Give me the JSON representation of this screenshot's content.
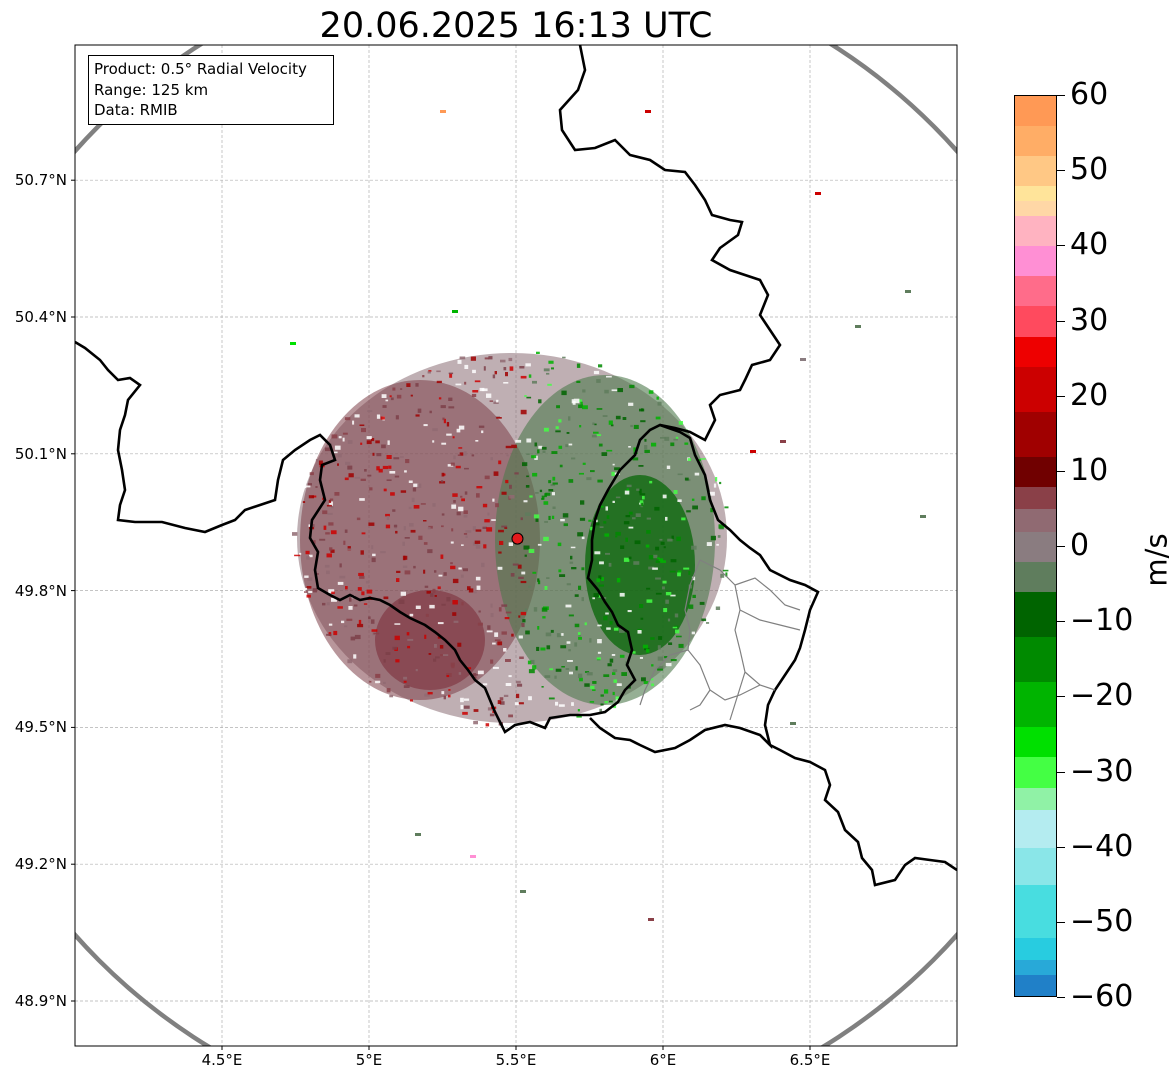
{
  "title": "20.06.2025 16:13 UTC",
  "info_box": {
    "product": "Product: 0.5° Radial Velocity",
    "range": "Range: 125 km",
    "data": "Data: RMIB"
  },
  "axes": {
    "x_ticks": [
      {
        "value": 4.5,
        "label": "4.5°E"
      },
      {
        "value": 5.0,
        "label": "5°E"
      },
      {
        "value": 5.5,
        "label": "5.5°E"
      },
      {
        "value": 6.0,
        "label": "6°E"
      },
      {
        "value": 6.5,
        "label": "6.5°E"
      }
    ],
    "y_ticks": [
      {
        "value": 50.7,
        "label": "50.7°N"
      },
      {
        "value": 50.4,
        "label": "50.4°N"
      },
      {
        "value": 50.1,
        "label": "50.1°N"
      },
      {
        "value": 49.8,
        "label": "49.8°N"
      },
      {
        "value": 49.5,
        "label": "49.5°N"
      },
      {
        "value": 49.2,
        "label": "49.2°N"
      },
      {
        "value": 48.9,
        "label": "48.9°N"
      }
    ],
    "lon_range": [
      4.0,
      7.0
    ],
    "lat_range": [
      48.8,
      51.0
    ],
    "grid": true
  },
  "radar": {
    "site_lon": 5.505,
    "site_lat": 49.914,
    "range_ring_km": 125,
    "site_color": "#e31a1c",
    "ring_color": "#808080"
  },
  "colorbar": {
    "label": "m/s",
    "min": -60,
    "max": 60,
    "ticks": [
      {
        "value": 60,
        "label": "60"
      },
      {
        "value": 50,
        "label": "50"
      },
      {
        "value": 40,
        "label": "40"
      },
      {
        "value": 30,
        "label": "30"
      },
      {
        "value": 20,
        "label": "20"
      },
      {
        "value": 10,
        "label": "10"
      },
      {
        "value": 0,
        "label": "0"
      },
      {
        "value": -10,
        "label": "−10"
      },
      {
        "value": -20,
        "label": "−20"
      },
      {
        "value": -30,
        "label": "−30"
      },
      {
        "value": -40,
        "label": "−40"
      },
      {
        "value": -50,
        "label": "−50"
      },
      {
        "value": -60,
        "label": "−60"
      }
    ],
    "stops": [
      {
        "from": 56,
        "to": 60,
        "color": "#ff9955"
      },
      {
        "from": 52,
        "to": 56,
        "color": "#ffad66"
      },
      {
        "from": 48,
        "to": 52,
        "color": "#ffc885"
      },
      {
        "from": 46,
        "to": 48,
        "color": "#ffe49a"
      },
      {
        "from": 44,
        "to": 46,
        "color": "#ffd7a6"
      },
      {
        "from": 40,
        "to": 44,
        "color": "#ffb3c1"
      },
      {
        "from": 36,
        "to": 40,
        "color": "#ff8fd4"
      },
      {
        "from": 32,
        "to": 36,
        "color": "#ff6c8a"
      },
      {
        "from": 28,
        "to": 32,
        "color": "#ff4a5e"
      },
      {
        "from": 24,
        "to": 28,
        "color": "#ee0000"
      },
      {
        "from": 18,
        "to": 24,
        "color": "#cc0000"
      },
      {
        "from": 12,
        "to": 18,
        "color": "#a00000"
      },
      {
        "from": 8,
        "to": 12,
        "color": "#700000"
      },
      {
        "from": 5,
        "to": 8,
        "color": "#8a4048"
      },
      {
        "from": 2,
        "to": 5,
        "color": "#906a72"
      },
      {
        "from": -2,
        "to": 2,
        "color": "#8a7c80"
      },
      {
        "from": -6,
        "to": -2,
        "color": "#5f7d5d"
      },
      {
        "from": -12,
        "to": -6,
        "color": "#006400"
      },
      {
        "from": -18,
        "to": -12,
        "color": "#008a00"
      },
      {
        "from": -24,
        "to": -18,
        "color": "#00b400"
      },
      {
        "from": -28,
        "to": -24,
        "color": "#00e000"
      },
      {
        "from": -32,
        "to": -28,
        "color": "#44ff44"
      },
      {
        "from": -35,
        "to": -32,
        "color": "#90f2a6"
      },
      {
        "from": -40,
        "to": -35,
        "color": "#b4ecf0"
      },
      {
        "from": -45,
        "to": -40,
        "color": "#8ae6e8"
      },
      {
        "from": -52,
        "to": -45,
        "color": "#48dde0"
      },
      {
        "from": -55,
        "to": -52,
        "color": "#28cce0"
      },
      {
        "from": -57,
        "to": -55,
        "color": "#28a9d8"
      },
      {
        "from": -60,
        "to": -57,
        "color": "#2080c8"
      }
    ]
  }
}
